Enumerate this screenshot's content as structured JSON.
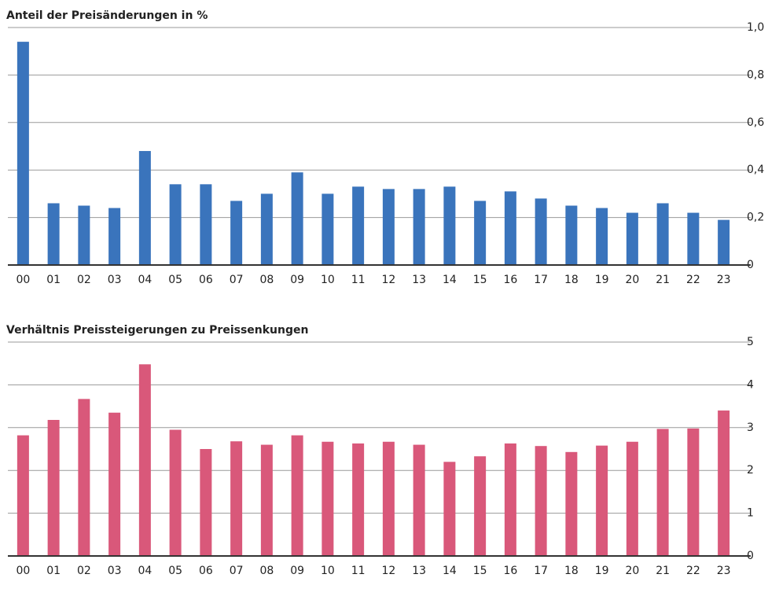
{
  "chart_data": [
    {
      "type": "bar",
      "title": "Anteil der Preisänderungen in %",
      "categories": [
        "00",
        "01",
        "02",
        "03",
        "04",
        "05",
        "06",
        "07",
        "08",
        "09",
        "10",
        "11",
        "12",
        "13",
        "14",
        "15",
        "16",
        "17",
        "18",
        "19",
        "20",
        "21",
        "22",
        "23"
      ],
      "values": [
        0.94,
        0.26,
        0.25,
        0.24,
        0.48,
        0.34,
        0.34,
        0.27,
        0.3,
        0.39,
        0.3,
        0.33,
        0.32,
        0.32,
        0.33,
        0.27,
        0.31,
        0.28,
        0.25,
        0.24,
        0.22,
        0.26,
        0.22,
        0.19
      ],
      "color": "#3a74bc",
      "ylim": [
        0,
        1
      ],
      "yticks": [
        0,
        {
          "value": 0.2,
          "label": "0,2"
        },
        {
          "value": 0.4,
          "label": "0,4"
        },
        {
          "value": 0.6,
          "label": "0,6"
        },
        {
          "value": 0.8,
          "label": "0,8"
        },
        {
          "value": 1,
          "label": "1,0"
        }
      ],
      "grid": true
    },
    {
      "type": "bar",
      "title": "Verhältnis Preissteigerungen zu Preissenkungen",
      "categories": [
        "00",
        "01",
        "02",
        "03",
        "04",
        "05",
        "06",
        "07",
        "08",
        "09",
        "10",
        "11",
        "12",
        "13",
        "14",
        "15",
        "16",
        "17",
        "18",
        "19",
        "20",
        "21",
        "22",
        "23"
      ],
      "values": [
        2.82,
        3.18,
        3.67,
        3.35,
        4.48,
        2.95,
        2.5,
        2.68,
        2.6,
        2.82,
        2.67,
        2.63,
        2.67,
        2.6,
        2.2,
        2.33,
        2.63,
        2.57,
        2.43,
        2.58,
        2.67,
        2.97,
        2.98,
        3.4
      ],
      "color": "#d9587a",
      "ylim": [
        0,
        5
      ],
      "yticks": [
        0,
        1,
        2,
        3,
        4,
        5
      ],
      "grid": true
    }
  ]
}
